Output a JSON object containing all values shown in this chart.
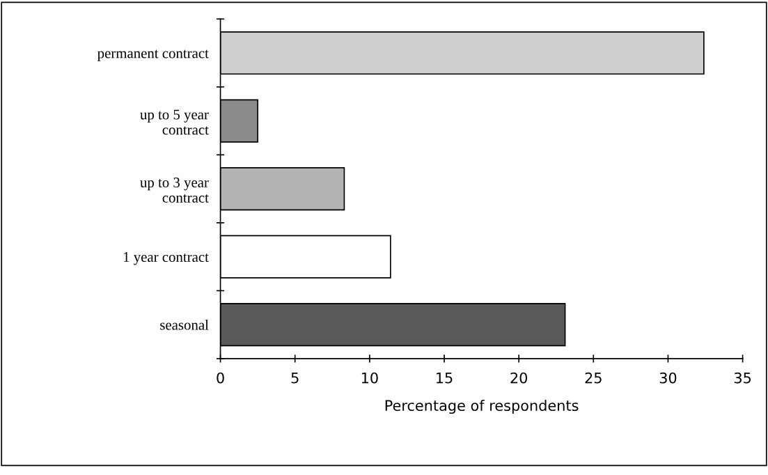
{
  "chart_data": {
    "type": "bar",
    "orientation": "horizontal",
    "xlabel": "Percentage of respondents",
    "categories": [
      "permanent contract",
      "up to 5 year\ncontract",
      "up to 3 year\ncontract",
      "1 year contract",
      "seasonal"
    ],
    "values": [
      32.4,
      2.5,
      8.3,
      11.4,
      23.1
    ],
    "colors": [
      "#cfcfcf",
      "#8a8a8a",
      "#b4b4b4",
      "#ffffff",
      "#5a5a5a"
    ],
    "xlim": [
      0,
      35
    ],
    "xticks": [
      0,
      5,
      10,
      15,
      20,
      25,
      30,
      35
    ],
    "grid": false,
    "legend": false
  }
}
